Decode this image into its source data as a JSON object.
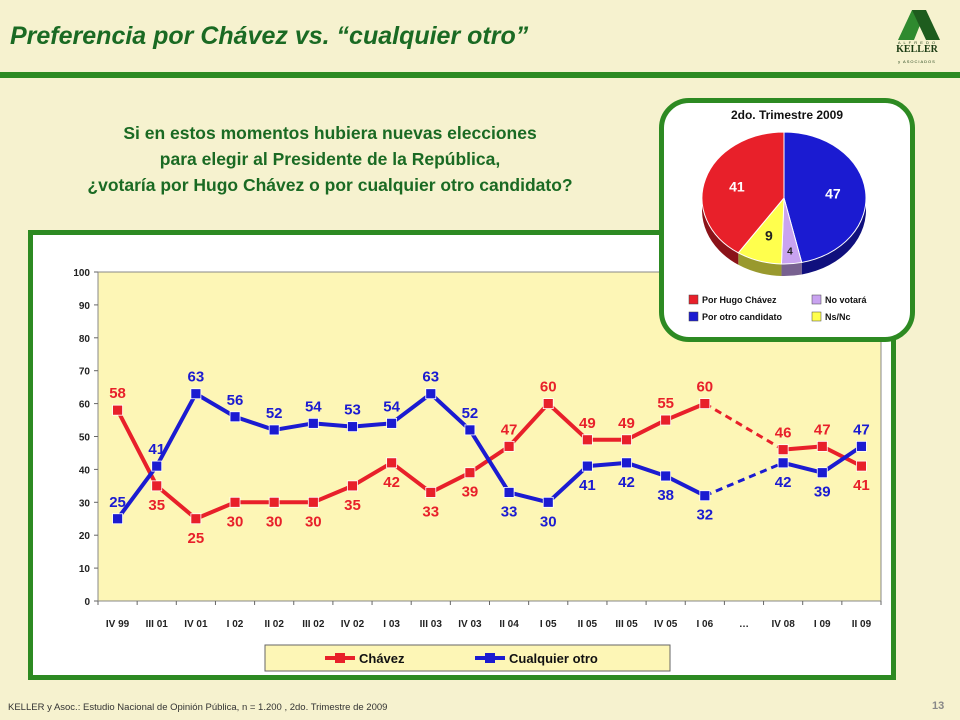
{
  "header": {
    "title": "Preferencia por Chávez vs. “cualquier otro”"
  },
  "logo": {
    "top": "A L F R E D O",
    "brand": "KELLER",
    "bottom": "y ASOCIADOS"
  },
  "question": [
    "Si en estos momentos hubiera nuevas elecciones",
    "para elegir al Presidente de la República,",
    "¿votaría por Hugo Chávez o por cualquier otro candidato?"
  ],
  "colors": {
    "green": "#2d8a22",
    "red": "#e8202a",
    "blue": "#1b1bd1",
    "yellow": "#ffff4d",
    "lilac": "#c9a3f0",
    "plot_bg": "#fdf6b6"
  },
  "chart_data": [
    {
      "type": "line",
      "categories": [
        "IV 99",
        "III 01",
        "IV 01",
        "I 02",
        "II 02",
        "III 02",
        "IV 02",
        "I 03",
        "III 03",
        "IV 03",
        "II 04",
        "I 05",
        "II 05",
        "III 05",
        "IV 05",
        "I 06",
        "…",
        "IV 08",
        "I 09",
        "II 09"
      ],
      "series": [
        {
          "name": "Chávez",
          "color": "#e8202a",
          "values": [
            58,
            35,
            25,
            30,
            30,
            30,
            35,
            42,
            33,
            39,
            47,
            60,
            49,
            49,
            55,
            60,
            null,
            46,
            47,
            41
          ]
        },
        {
          "name": "Cualquier otro",
          "color": "#1b1bd1",
          "values": [
            25,
            41,
            63,
            56,
            52,
            54,
            53,
            54,
            63,
            52,
            33,
            30,
            41,
            42,
            38,
            32,
            null,
            42,
            39,
            47
          ]
        }
      ],
      "ylim": [
        0,
        100
      ],
      "yticks": [
        0,
        10,
        20,
        30,
        40,
        50,
        60,
        70,
        80,
        90,
        100
      ],
      "grid": false,
      "legend_position": "bottom",
      "gap_style": "dashed"
    },
    {
      "type": "pie",
      "title": "2do. Trimestre 2009",
      "slices": [
        {
          "label": "Por Hugo Chávez",
          "value": 41,
          "color": "#e8202a"
        },
        {
          "label": "Por otro candidato",
          "value": 47,
          "color": "#1b1bd1"
        },
        {
          "label": "No votará",
          "value": 4,
          "color": "#c9a3f0"
        },
        {
          "label": "Ns/Nc",
          "value": 9,
          "color": "#ffff4d"
        }
      ],
      "legend_position": "bottom"
    }
  ],
  "footer": {
    "source": "KELLER y Asoc.: Estudio Nacional de Opinión Pública, n = 1.200 , 2do. Trimestre de 2009",
    "page": "13"
  }
}
